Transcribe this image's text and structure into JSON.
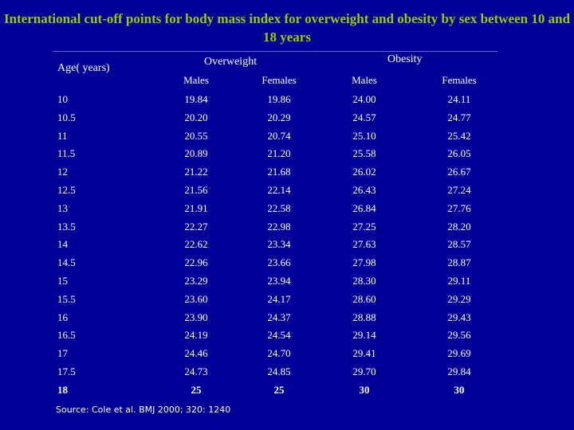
{
  "title": "International cut-off points for body mass index for overweight and obesity by sex between 10 and 18 years",
  "headers": {
    "age": "Age( years)",
    "overweight": "Overweight",
    "obesity": "Obesity",
    "ow_males": "Males",
    "ow_females": "Females",
    "ob_males": "Males",
    "ob_females": "Females"
  },
  "rows": [
    {
      "age": "10",
      "ow_m": "19.84",
      "ow_f": "19.86",
      "ob_m": "24.00",
      "ob_f": "24.11"
    },
    {
      "age": "10.5",
      "ow_m": "20.20",
      "ow_f": "20.29",
      "ob_m": "24.57",
      "ob_f": "24.77"
    },
    {
      "age": "11",
      "ow_m": "20.55",
      "ow_f": "20.74",
      "ob_m": "25.10",
      "ob_f": "25.42"
    },
    {
      "age": "11.5",
      "ow_m": "20.89",
      "ow_f": "21.20",
      "ob_m": "25.58",
      "ob_f": "26.05"
    },
    {
      "age": "12",
      "ow_m": "21.22",
      "ow_f": "21.68",
      "ob_m": "26.02",
      "ob_f": "26.67"
    },
    {
      "age": "12.5",
      "ow_m": "21.56",
      "ow_f": "22.14",
      "ob_m": "26.43",
      "ob_f": "27.24"
    },
    {
      "age": "13",
      "ow_m": "21.91",
      "ow_f": "22.58",
      "ob_m": "26.84",
      "ob_f": "27.76"
    },
    {
      "age": "13.5",
      "ow_m": "22.27",
      "ow_f": "22.98",
      "ob_m": "27.25",
      "ob_f": "28.20"
    },
    {
      "age": "14",
      "ow_m": "22.62",
      "ow_f": "23.34",
      "ob_m": "27.63",
      "ob_f": "28.57"
    },
    {
      "age": "14.5",
      "ow_m": "22.96",
      "ow_f": "23.66",
      "ob_m": "27.98",
      "ob_f": "28.87"
    },
    {
      "age": "15",
      "ow_m": "23.29",
      "ow_f": "23.94",
      "ob_m": "28.30",
      "ob_f": "29.11"
    },
    {
      "age": "15.5",
      "ow_m": "23.60",
      "ow_f": "24.17",
      "ob_m": "28.60",
      "ob_f": "29.29"
    },
    {
      "age": "16",
      "ow_m": "23.90",
      "ow_f": "24.37",
      "ob_m": "28.88",
      "ob_f": "29.43"
    },
    {
      "age": "16.5",
      "ow_m": "24.19",
      "ow_f": "24.54",
      "ob_m": "29.14",
      "ob_f": "29.56"
    },
    {
      "age": "17",
      "ow_m": "24.46",
      "ow_f": "24.70",
      "ob_m": "29.41",
      "ob_f": "29.69"
    },
    {
      "age": "17.5",
      "ow_m": "24.73",
      "ow_f": "24.85",
      "ob_m": "29.70",
      "ob_f": "29.84"
    },
    {
      "age": "18",
      "ow_m": "25",
      "ow_f": "25",
      "ob_m": "30",
      "ob_f": "30"
    }
  ],
  "source": "Source: Cole et al. BMJ 2000; 320: 1240",
  "colors": {
    "background": "#000099",
    "title": "#99cc00",
    "text": "#ffffff"
  }
}
